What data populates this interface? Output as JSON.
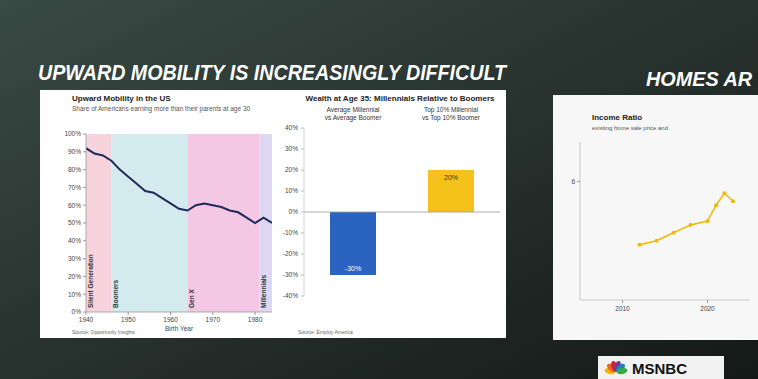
{
  "screen": {
    "headline": "UPWARD MOBILITY IS INCREASINGLY DIFFICULT",
    "panel_title": "HOMES AR",
    "network": "MSNBC"
  },
  "chart_data": [
    {
      "type": "line",
      "title": "Upward Mobility in the US",
      "subtitle": "Share of Americans earning more than their parents at age 30",
      "x_label": "Birth Year",
      "source": "Source: Opportunity Insights",
      "x": [
        1940,
        1942,
        1944,
        1946,
        1948,
        1950,
        1952,
        1954,
        1956,
        1958,
        1960,
        1962,
        1964,
        1966,
        1968,
        1970,
        1972,
        1974,
        1976,
        1978,
        1980,
        1982,
        1984
      ],
      "values": [
        92,
        89,
        88,
        85,
        80,
        76,
        72,
        68,
        67,
        64,
        61,
        58,
        57,
        60,
        61,
        60,
        59,
        57,
        56,
        53,
        50,
        53,
        50
      ],
      "color": "#1d2a5a",
      "bands": [
        {
          "label": "Silent Generation",
          "start": 1940,
          "end": 1946,
          "color": "#f6d3dd"
        },
        {
          "label": "Boomers",
          "start": 1946,
          "end": 1964,
          "color": "#d3eaee"
        },
        {
          "label": "Gen X",
          "start": 1964,
          "end": 1981,
          "color": "#f4c8e5"
        },
        {
          "label": "Millennials",
          "start": 1981,
          "end": 1984,
          "color": "#ddd7f3"
        }
      ],
      "xlim": [
        1940,
        1984
      ],
      "xticks": [
        1940,
        1950,
        1960,
        1970,
        1980
      ],
      "ylim": [
        0,
        100
      ],
      "yticks": [
        {
          "value": 0,
          "label": "0%"
        },
        {
          "value": 10,
          "label": "10%"
        },
        {
          "value": 20,
          "label": "20%"
        },
        {
          "value": 30,
          "label": "30%"
        },
        {
          "value": 40,
          "label": "40%"
        },
        {
          "value": 50,
          "label": "50%"
        },
        {
          "value": 60,
          "label": "60%"
        },
        {
          "value": 70,
          "label": "70%"
        },
        {
          "value": 80,
          "label": "80%"
        },
        {
          "value": 90,
          "label": "90%"
        },
        {
          "value": 100,
          "label": "100%"
        }
      ],
      "grid": false
    },
    {
      "type": "bar",
      "title": "Wealth at Age 35: Millennials Relative to Boomers",
      "source": "Source: Employ America",
      "categories": [
        "Average Millennial vs Average Boomer",
        "Top 10% Millennial vs Top 10% Boomer"
      ],
      "values": [
        -30,
        20
      ],
      "value_labels": [
        "-30%",
        "20%"
      ],
      "data_labels": true,
      "colors": [
        "#2a64c0",
        "#f5c21b"
      ],
      "ylim": [
        -40,
        40
      ],
      "yticks": [
        {
          "value": -40,
          "label": "-40%"
        },
        {
          "value": -30,
          "label": "-30%"
        },
        {
          "value": -20,
          "label": "-20%"
        },
        {
          "value": -10,
          "label": "-10%"
        },
        {
          "value": 0,
          "label": "0%"
        },
        {
          "value": 10,
          "label": "10%"
        },
        {
          "value": 20,
          "label": "20%"
        },
        {
          "value": 30,
          "label": "30%"
        },
        {
          "value": 40,
          "label": "40%"
        }
      ],
      "grid": false
    },
    {
      "type": "line",
      "title": "Income Ratio",
      "subtitle": "existing home sale price and",
      "x": [
        2012,
        2014,
        2016,
        2018,
        2020,
        2021,
        2022,
        2023
      ],
      "values": [
        4.4,
        4.5,
        4.7,
        4.9,
        5.0,
        5.4,
        5.7,
        5.5
      ],
      "color": "#f2b705",
      "marker": "circle",
      "xlim": [
        2005,
        2025
      ],
      "xticks": [
        2010,
        2020
      ],
      "ylim": [
        3,
        7
      ],
      "yticks": [
        6
      ],
      "grid": false
    }
  ]
}
